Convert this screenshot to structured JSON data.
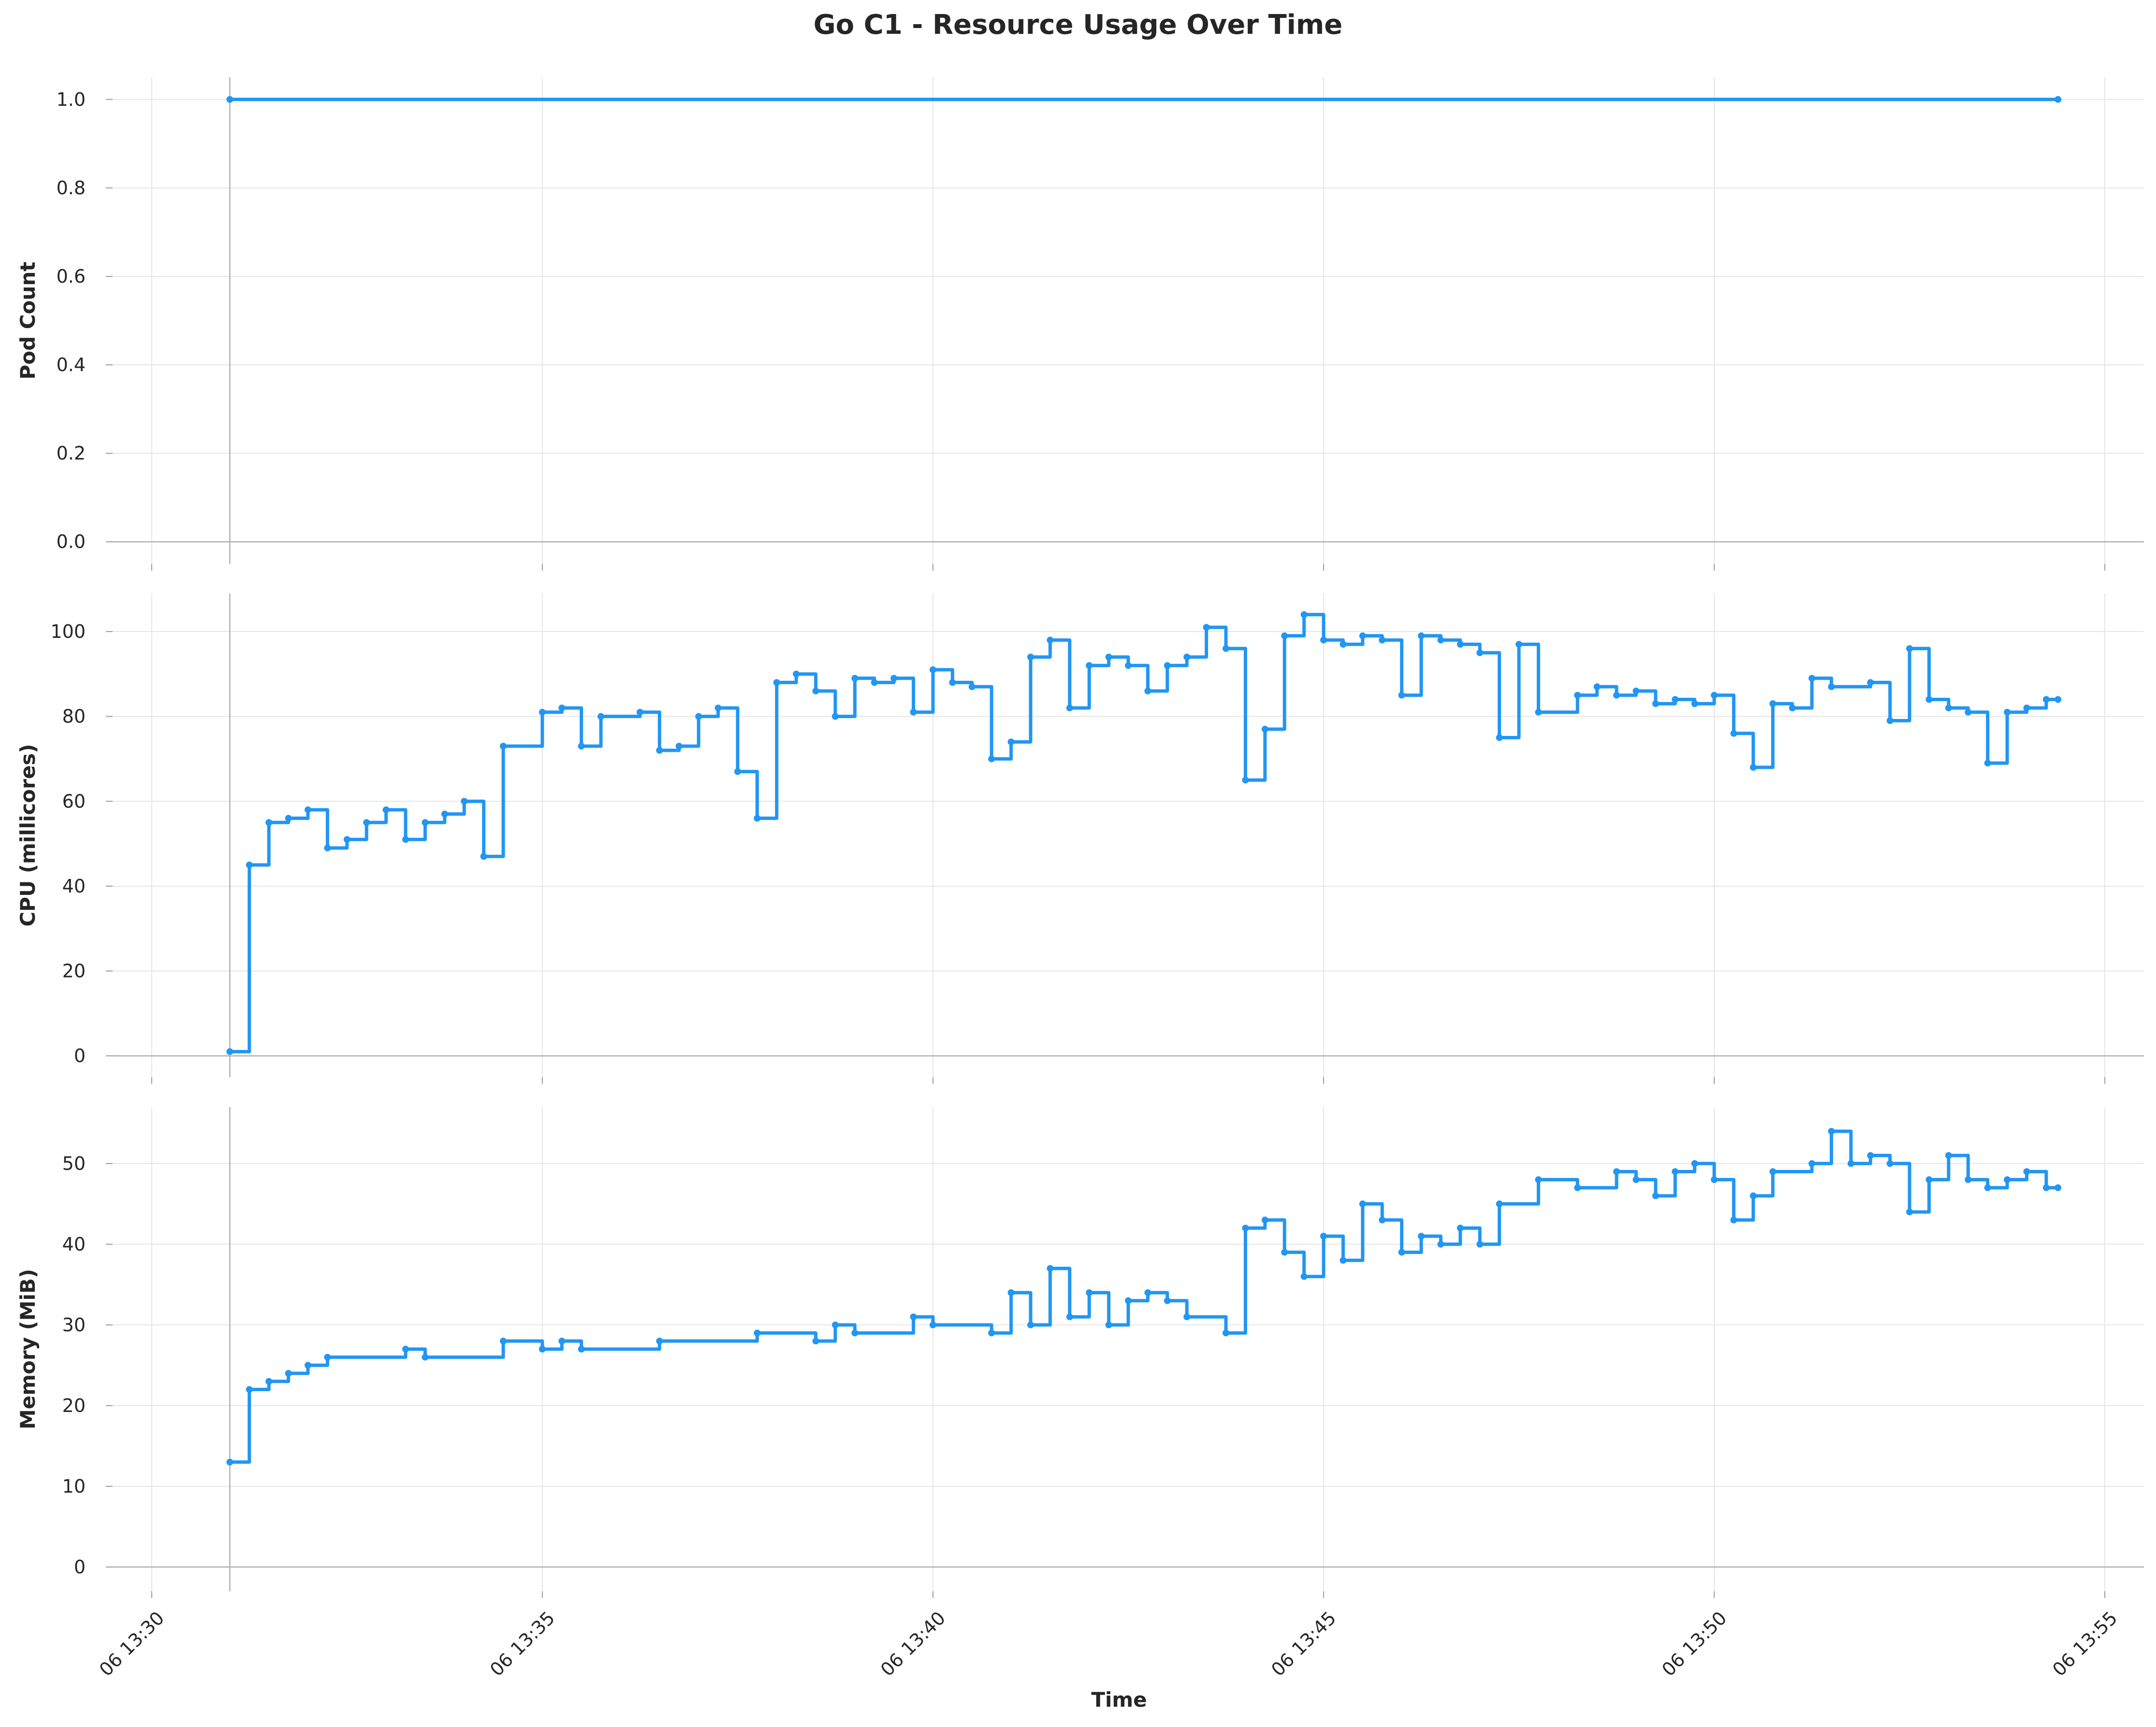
{
  "chart_data": {
    "type": "line",
    "title": "Go C1 - Resource Usage Over Time",
    "xlabel": "Time",
    "x_ticks": [
      "06 13:30",
      "06 13:35",
      "06 13:40",
      "06 13:45",
      "06 13:50",
      "06 13:55"
    ],
    "x_tick_minutes": [
      30,
      35,
      40,
      45,
      50,
      55
    ],
    "xlim_minutes": [
      29.5,
      55.5
    ],
    "x_unit_note": "",
    "colors": {
      "series": "#2196F3",
      "grid": "#e6e6e6",
      "axis": "#b0b0b0",
      "text": "#262626"
    },
    "grid": true,
    "panels": [
      {
        "ylabel": "Pod Count",
        "ylim": [
          -0.05,
          1.05
        ],
        "y_ticks": [
          "0.0",
          "0.2",
          "0.4",
          "0.6",
          "0.8",
          "1.0"
        ],
        "y_tick_values": [
          0,
          0.2,
          0.4,
          0.6,
          0.8,
          1.0
        ],
        "steps": [
          [
            31.0,
            1
          ],
          [
            54.4,
            1
          ]
        ]
      },
      {
        "ylabel": "CPU (millicores)",
        "ylim": [
          -5,
          109
        ],
        "y_ticks": [
          "0",
          "20",
          "40",
          "60",
          "80",
          "100"
        ],
        "y_tick_values": [
          0,
          20,
          40,
          60,
          80,
          100
        ],
        "steps": [
          [
            31.0,
            1
          ],
          [
            31.25,
            45
          ],
          [
            31.5,
            55
          ],
          [
            31.75,
            56
          ],
          [
            32.0,
            58
          ],
          [
            32.25,
            49
          ],
          [
            32.5,
            51
          ],
          [
            32.75,
            55
          ],
          [
            33.0,
            58
          ],
          [
            33.25,
            51
          ],
          [
            33.5,
            55
          ],
          [
            33.75,
            57
          ],
          [
            34.0,
            60
          ],
          [
            34.25,
            47
          ],
          [
            34.5,
            73
          ],
          [
            35.0,
            81
          ],
          [
            35.25,
            82
          ],
          [
            35.5,
            73
          ],
          [
            35.75,
            80
          ],
          [
            36.25,
            81
          ],
          [
            36.5,
            72
          ],
          [
            36.75,
            73
          ],
          [
            37.0,
            80
          ],
          [
            37.25,
            82
          ],
          [
            37.5,
            67
          ],
          [
            37.75,
            56
          ],
          [
            38.0,
            88
          ],
          [
            38.25,
            90
          ],
          [
            38.5,
            86
          ],
          [
            38.75,
            80
          ],
          [
            39.0,
            89
          ],
          [
            39.25,
            88
          ],
          [
            39.5,
            89
          ],
          [
            39.75,
            81
          ],
          [
            40.0,
            91
          ],
          [
            40.25,
            88
          ],
          [
            40.5,
            87
          ],
          [
            40.75,
            70
          ],
          [
            41.0,
            74
          ],
          [
            41.25,
            94
          ],
          [
            41.5,
            98
          ],
          [
            41.75,
            82
          ],
          [
            42.0,
            92
          ],
          [
            42.25,
            94
          ],
          [
            42.5,
            92
          ],
          [
            42.75,
            86
          ],
          [
            43.0,
            92
          ],
          [
            43.25,
            94
          ],
          [
            43.5,
            101
          ],
          [
            43.75,
            96
          ],
          [
            44.0,
            65
          ],
          [
            44.25,
            77
          ],
          [
            44.5,
            99
          ],
          [
            44.75,
            104
          ],
          [
            45.0,
            98
          ],
          [
            45.25,
            97
          ],
          [
            45.5,
            99
          ],
          [
            45.75,
            98
          ],
          [
            46.0,
            85
          ],
          [
            46.25,
            99
          ],
          [
            46.5,
            98
          ],
          [
            46.75,
            97
          ],
          [
            47.0,
            95
          ],
          [
            47.25,
            75
          ],
          [
            47.5,
            97
          ],
          [
            47.75,
            81
          ],
          [
            48.25,
            85
          ],
          [
            48.5,
            87
          ],
          [
            48.75,
            85
          ],
          [
            49.0,
            86
          ],
          [
            49.25,
            83
          ],
          [
            49.5,
            84
          ],
          [
            49.75,
            83
          ],
          [
            50.0,
            85
          ],
          [
            50.25,
            76
          ],
          [
            50.5,
            68
          ],
          [
            50.75,
            83
          ],
          [
            51.0,
            82
          ],
          [
            51.25,
            89
          ],
          [
            51.5,
            87
          ],
          [
            52.0,
            88
          ],
          [
            52.25,
            79
          ],
          [
            52.5,
            96
          ],
          [
            52.75,
            84
          ],
          [
            53.0,
            82
          ],
          [
            53.25,
            81
          ],
          [
            53.5,
            69
          ],
          [
            53.75,
            81
          ],
          [
            54.0,
            82
          ],
          [
            54.25,
            84
          ],
          [
            54.4,
            84
          ]
        ]
      },
      {
        "ylabel": "Memory (MiB)",
        "ylim": [
          -3,
          57
        ],
        "y_ticks": [
          "0",
          "10",
          "20",
          "30",
          "40",
          "50"
        ],
        "y_tick_values": [
          0,
          10,
          20,
          30,
          40,
          50
        ],
        "steps": [
          [
            31.0,
            13
          ],
          [
            31.25,
            22
          ],
          [
            31.5,
            23
          ],
          [
            31.75,
            24
          ],
          [
            32.0,
            25
          ],
          [
            32.25,
            26
          ],
          [
            33.25,
            27
          ],
          [
            33.5,
            26
          ],
          [
            34.5,
            28
          ],
          [
            35.0,
            27
          ],
          [
            35.25,
            28
          ],
          [
            35.5,
            27
          ],
          [
            36.5,
            28
          ],
          [
            37.75,
            29
          ],
          [
            38.5,
            28
          ],
          [
            38.75,
            30
          ],
          [
            39.0,
            29
          ],
          [
            39.75,
            31
          ],
          [
            40.0,
            30
          ],
          [
            40.75,
            29
          ],
          [
            41.0,
            34
          ],
          [
            41.25,
            30
          ],
          [
            41.5,
            37
          ],
          [
            41.75,
            31
          ],
          [
            42.0,
            34
          ],
          [
            42.25,
            30
          ],
          [
            42.5,
            33
          ],
          [
            42.75,
            34
          ],
          [
            43.0,
            33
          ],
          [
            43.25,
            31
          ],
          [
            43.75,
            29
          ],
          [
            44.0,
            42
          ],
          [
            44.25,
            43
          ],
          [
            44.5,
            39
          ],
          [
            44.75,
            36
          ],
          [
            45.0,
            41
          ],
          [
            45.25,
            38
          ],
          [
            45.5,
            45
          ],
          [
            45.75,
            43
          ],
          [
            46.0,
            39
          ],
          [
            46.25,
            41
          ],
          [
            46.5,
            40
          ],
          [
            46.75,
            42
          ],
          [
            47.0,
            40
          ],
          [
            47.25,
            45
          ],
          [
            47.75,
            48
          ],
          [
            48.25,
            47
          ],
          [
            48.75,
            49
          ],
          [
            49.0,
            48
          ],
          [
            49.25,
            46
          ],
          [
            49.5,
            49
          ],
          [
            49.75,
            50
          ],
          [
            50.0,
            48
          ],
          [
            50.25,
            43
          ],
          [
            50.5,
            46
          ],
          [
            50.75,
            49
          ],
          [
            51.25,
            50
          ],
          [
            51.5,
            54
          ],
          [
            51.75,
            50
          ],
          [
            52.0,
            51
          ],
          [
            52.25,
            50
          ],
          [
            52.5,
            44
          ],
          [
            52.75,
            48
          ],
          [
            53.0,
            51
          ],
          [
            53.25,
            48
          ],
          [
            53.5,
            47
          ],
          [
            53.75,
            48
          ],
          [
            54.0,
            49
          ],
          [
            54.25,
            47
          ],
          [
            54.4,
            47
          ]
        ]
      }
    ]
  }
}
